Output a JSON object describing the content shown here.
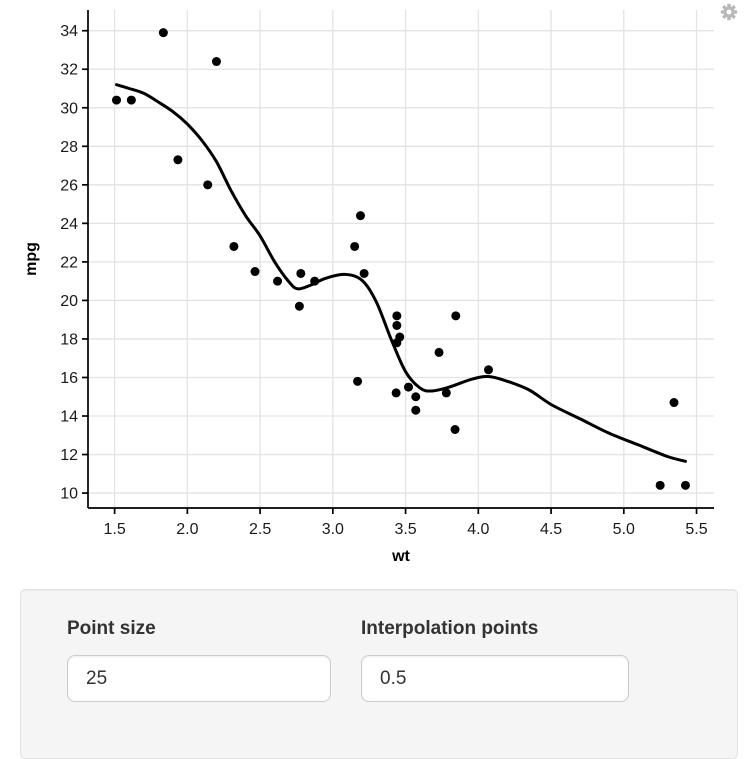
{
  "app": {
    "background": "#ffffff"
  },
  "toolbar": {
    "gear_icon": "gear-icon",
    "gear_color": "#b8b8b8"
  },
  "chart_data": {
    "type": "scatter",
    "title": "",
    "xlabel": "wt",
    "ylabel": "mpg",
    "x_domain": [
      1.317,
      5.62
    ],
    "y_domain": [
      9.225,
      35.075
    ],
    "x_tick_values": [
      1.5,
      2.0,
      2.5,
      3.0,
      3.5,
      4.0,
      4.5,
      5.0,
      5.5
    ],
    "x_tick_labels": [
      "1.5",
      "2.0",
      "2.5",
      "3.0",
      "3.5",
      "4.0",
      "4.5",
      "5.0",
      "5.5"
    ],
    "y_tick_values": [
      10,
      12,
      14,
      16,
      18,
      20,
      22,
      24,
      26,
      28,
      30,
      32,
      34
    ],
    "y_tick_labels": [
      "10",
      "12",
      "14",
      "16",
      "18",
      "20",
      "22",
      "24",
      "26",
      "28",
      "30",
      "32",
      "34"
    ],
    "grid": true,
    "legend": "none",
    "grid_color": "#e3e3e3",
    "axis_color": "#000000",
    "tick_label_color": "#1a1a1a",
    "point_color": "#000000",
    "line_color": "#000000",
    "points": [
      [
        2.62,
        21.0
      ],
      [
        2.875,
        21.0
      ],
      [
        2.32,
        22.8
      ],
      [
        3.215,
        21.4
      ],
      [
        3.44,
        18.7
      ],
      [
        3.46,
        18.1
      ],
      [
        3.57,
        14.3
      ],
      [
        3.19,
        24.4
      ],
      [
        3.15,
        22.8
      ],
      [
        3.44,
        19.2
      ],
      [
        3.44,
        17.8
      ],
      [
        4.07,
        16.4
      ],
      [
        3.73,
        17.3
      ],
      [
        3.78,
        15.2
      ],
      [
        5.25,
        10.4
      ],
      [
        5.424,
        10.4
      ],
      [
        5.345,
        14.7
      ],
      [
        2.2,
        32.4
      ],
      [
        1.615,
        30.4
      ],
      [
        1.835,
        33.9
      ],
      [
        2.465,
        21.5
      ],
      [
        3.52,
        15.5
      ],
      [
        3.435,
        15.2
      ],
      [
        3.84,
        13.3
      ],
      [
        3.845,
        19.2
      ],
      [
        1.935,
        27.3
      ],
      [
        2.14,
        26.0
      ],
      [
        1.513,
        30.4
      ],
      [
        3.17,
        15.8
      ],
      [
        2.77,
        19.7
      ],
      [
        3.57,
        15.0
      ],
      [
        2.78,
        21.4
      ]
    ],
    "smooth_line": [
      [
        1.513,
        31.2
      ],
      [
        1.6,
        31.0
      ],
      [
        1.7,
        30.75
      ],
      [
        1.8,
        30.3
      ],
      [
        1.9,
        29.8
      ],
      [
        2.0,
        29.15
      ],
      [
        2.1,
        28.3
      ],
      [
        2.2,
        27.2
      ],
      [
        2.3,
        25.7
      ],
      [
        2.4,
        24.4
      ],
      [
        2.5,
        23.35
      ],
      [
        2.6,
        22.0
      ],
      [
        2.7,
        20.95
      ],
      [
        2.76,
        20.6
      ],
      [
        2.85,
        20.8
      ],
      [
        2.95,
        21.15
      ],
      [
        3.08,
        21.35
      ],
      [
        3.2,
        21.05
      ],
      [
        3.3,
        19.9
      ],
      [
        3.4,
        18.0
      ],
      [
        3.5,
        16.3
      ],
      [
        3.6,
        15.45
      ],
      [
        3.68,
        15.3
      ],
      [
        3.8,
        15.5
      ],
      [
        3.95,
        15.9
      ],
      [
        4.07,
        16.05
      ],
      [
        4.2,
        15.8
      ],
      [
        4.35,
        15.35
      ],
      [
        4.5,
        14.6
      ],
      [
        4.7,
        13.85
      ],
      [
        4.9,
        13.1
      ],
      [
        5.1,
        12.5
      ],
      [
        5.3,
        11.9
      ],
      [
        5.424,
        11.65
      ]
    ]
  },
  "controls": {
    "point_size": {
      "label": "Point size",
      "value": "25"
    },
    "interpolation": {
      "label": "Interpolation points",
      "value": "0.5"
    }
  }
}
